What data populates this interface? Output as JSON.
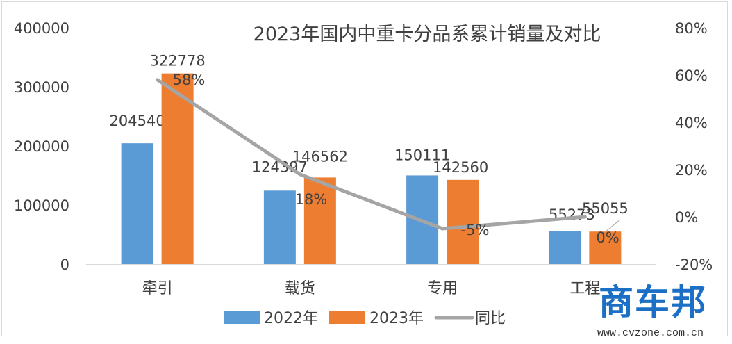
{
  "chart_data": {
    "type": "bar",
    "title": "2023年国内中重卡分品系累计销量及对比",
    "categories": [
      "牵引",
      "载货",
      "专用",
      "工程"
    ],
    "series": [
      {
        "name": "2022年",
        "type": "bar",
        "axis": "left",
        "color": "#5b9bd5",
        "values": [
          204540,
          124397,
          150111,
          55273
        ],
        "labels": [
          "204540",
          "124397",
          "150111",
          "55273"
        ]
      },
      {
        "name": "2023年",
        "type": "bar",
        "axis": "left",
        "color": "#ed7d31",
        "values": [
          322778,
          146562,
          142560,
          55055
        ],
        "labels": [
          "322778",
          "146562",
          "142560",
          "55055"
        ]
      },
      {
        "name": "同比",
        "type": "line",
        "axis": "right",
        "color": "#a5a5a5",
        "values": [
          58,
          18,
          -5,
          0
        ],
        "labels": [
          "58%",
          "18%",
          "-5%",
          "0%"
        ]
      }
    ],
    "y_left": {
      "range": [
        0,
        400000
      ],
      "ticks": [
        "0",
        "100000",
        "200000",
        "300000",
        "400000"
      ]
    },
    "y_right": {
      "range": [
        -20,
        80
      ],
      "unit": "%",
      "ticks": [
        "-20%",
        "0%",
        "20%",
        "40%",
        "60%",
        "80%"
      ]
    },
    "grid": false,
    "legend_position": "bottom"
  },
  "watermark": {
    "logo_text": "商车邦",
    "url": "www.cvzone.com.cn"
  }
}
